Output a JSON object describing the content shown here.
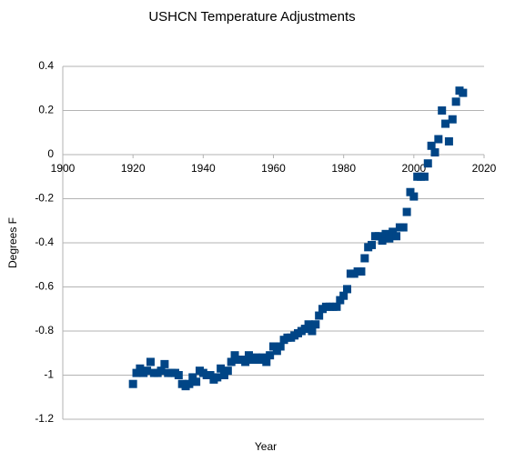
{
  "chart_data": {
    "type": "scatter",
    "title": "USHCN Temperature Adjustments",
    "xlabel": "Year",
    "ylabel": "Degrees F",
    "color": "#004586",
    "grid": true,
    "xlim": [
      1900,
      2020
    ],
    "xticks": [
      1900,
      1920,
      1940,
      1960,
      1980,
      2000,
      2020
    ],
    "ylim": [
      -1.2,
      0.4
    ],
    "yticks": [
      0.4,
      0.2,
      0,
      -0.2,
      -0.4,
      -0.6,
      -0.8,
      -1,
      -1.2
    ],
    "x": [
      1920,
      1921,
      1922,
      1923,
      1924,
      1925,
      1926,
      1927,
      1928,
      1929,
      1930,
      1931,
      1932,
      1933,
      1934,
      1935,
      1936,
      1937,
      1938,
      1939,
      1940,
      1941,
      1942,
      1943,
      1944,
      1945,
      1946,
      1947,
      1948,
      1949,
      1950,
      1951,
      1952,
      1953,
      1954,
      1955,
      1956,
      1957,
      1958,
      1959,
      1960,
      1961,
      1962,
      1963,
      1964,
      1965,
      1966,
      1967,
      1968,
      1969,
      1970,
      1971,
      1972,
      1973,
      1974,
      1975,
      1976,
      1977,
      1978,
      1979,
      1980,
      1981,
      1982,
      1983,
      1984,
      1985,
      1986,
      1987,
      1988,
      1989,
      1990,
      1991,
      1992,
      1993,
      1994,
      1995,
      1996,
      1997,
      1998,
      1999,
      2000,
      2001,
      2002,
      2003,
      2004,
      2005,
      2006,
      2007,
      2008,
      2009,
      2010,
      2011,
      2012,
      2013,
      2014
    ],
    "values": [
      -1.04,
      -0.99,
      -0.97,
      -0.99,
      -0.98,
      -0.94,
      -0.99,
      -0.99,
      -0.98,
      -0.95,
      -0.99,
      -0.99,
      -0.99,
      -1.0,
      -1.04,
      -1.05,
      -1.04,
      -1.01,
      -1.03,
      -0.98,
      -0.99,
      -1.0,
      -1.0,
      -1.02,
      -1.01,
      -0.97,
      -1.0,
      -0.98,
      -0.94,
      -0.91,
      -0.93,
      -0.93,
      -0.94,
      -0.91,
      -0.93,
      -0.92,
      -0.93,
      -0.92,
      -0.94,
      -0.91,
      -0.87,
      -0.89,
      -0.87,
      -0.84,
      -0.83,
      -0.83,
      -0.82,
      -0.81,
      -0.8,
      -0.79,
      -0.77,
      -0.8,
      -0.77,
      -0.73,
      -0.7,
      -0.69,
      -0.69,
      -0.69,
      -0.69,
      -0.66,
      -0.64,
      -0.61,
      -0.54,
      -0.54,
      -0.53,
      -0.53,
      -0.47,
      -0.42,
      -0.41,
      -0.37,
      -0.37,
      -0.39,
      -0.36,
      -0.38,
      -0.35,
      -0.37,
      -0.33,
      -0.33,
      -0.26,
      -0.17,
      -0.19,
      -0.1,
      -0.1,
      -0.1,
      -0.04,
      0.04,
      0.01,
      0.07,
      0.2,
      0.14,
      0.06,
      0.16,
      0.24,
      0.29,
      0.28
    ]
  }
}
